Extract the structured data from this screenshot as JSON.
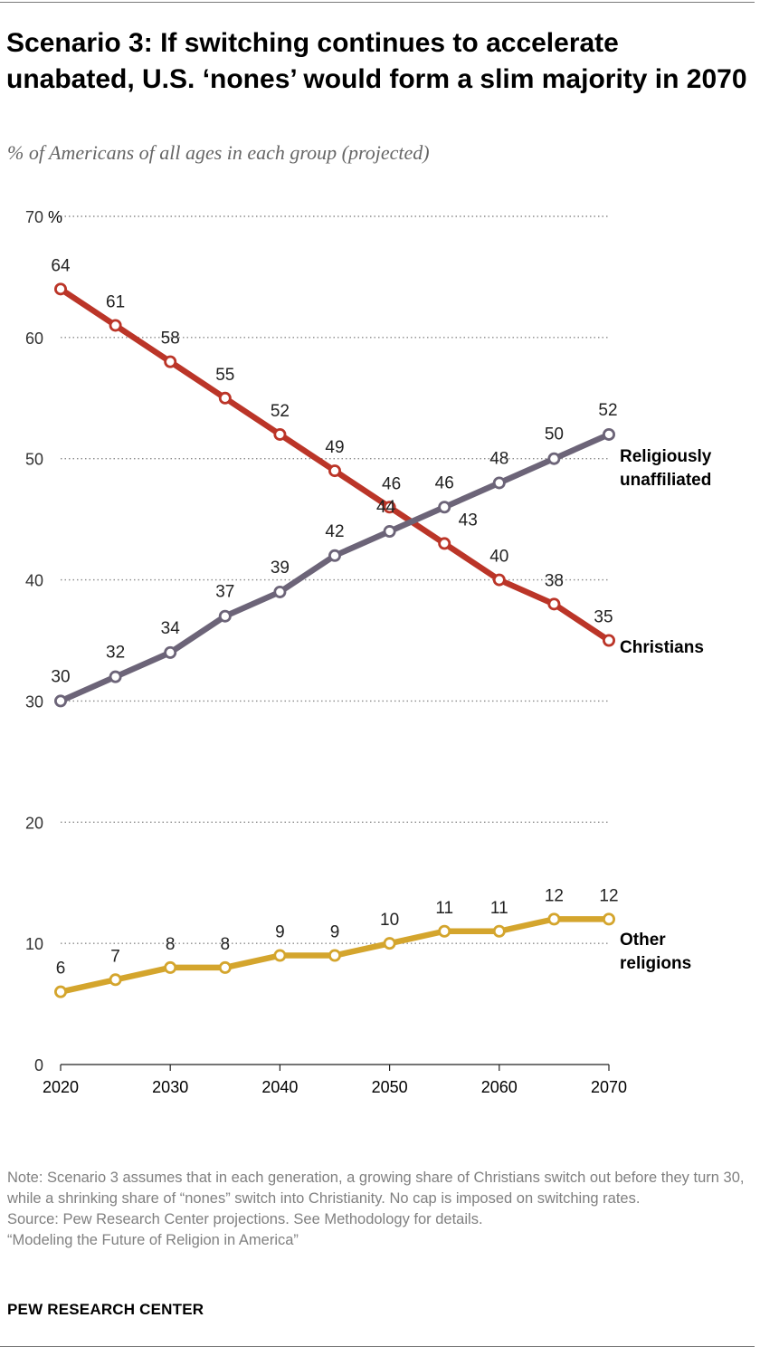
{
  "title": "Scenario 3: If switching continues to accelerate unabated, U.S. ‘nones’ would form a slim majority in 2070",
  "subtitle": "% of Americans of all ages in each group (projected)",
  "note": "Note: Scenario 3 assumes that in each generation, a growing share of Christians switch out before they turn 30, while a shrinking share of “nones” switch into Christianity. No cap is imposed on switching rates.",
  "source": "Source: Pew Research Center projections. See Methodology for details.",
  "report": "“Modeling the Future of Religion in America”",
  "footer": "PEW RESEARCH CENTER",
  "colors": {
    "christians": "#bb3528",
    "unaffiliated": "#6c6478",
    "other": "#d4a52d",
    "grid": "#8c8c8c",
    "axis": "#222222"
  },
  "chart_data": {
    "type": "line",
    "x": [
      2020,
      2025,
      2030,
      2035,
      2040,
      2045,
      2050,
      2055,
      2060,
      2065,
      2070
    ],
    "x_ticks": [
      2020,
      2030,
      2040,
      2050,
      2060,
      2070
    ],
    "y_ticks": [
      0,
      10,
      20,
      30,
      40,
      50,
      60,
      70
    ],
    "y_top_tick_label": "70",
    "y_unit_label": "%",
    "ylim": [
      0,
      70
    ],
    "grid": true,
    "series": [
      {
        "key": "christians",
        "name": "Christians",
        "label_lines": [
          "Christians"
        ],
        "values": [
          64,
          61,
          58,
          55,
          52,
          49,
          46,
          43,
          40,
          38,
          35
        ]
      },
      {
        "key": "unaffiliated",
        "name": "Religiously unaffiliated",
        "label_lines": [
          "Religiously",
          "unaffiliated"
        ],
        "values": [
          30,
          32,
          34,
          37,
          39,
          42,
          44,
          46,
          48,
          50,
          52
        ]
      },
      {
        "key": "other",
        "name": "Other religions",
        "label_lines": [
          "Other",
          "religions"
        ],
        "values": [
          6,
          7,
          8,
          8,
          9,
          9,
          10,
          11,
          11,
          12,
          12
        ]
      }
    ]
  }
}
